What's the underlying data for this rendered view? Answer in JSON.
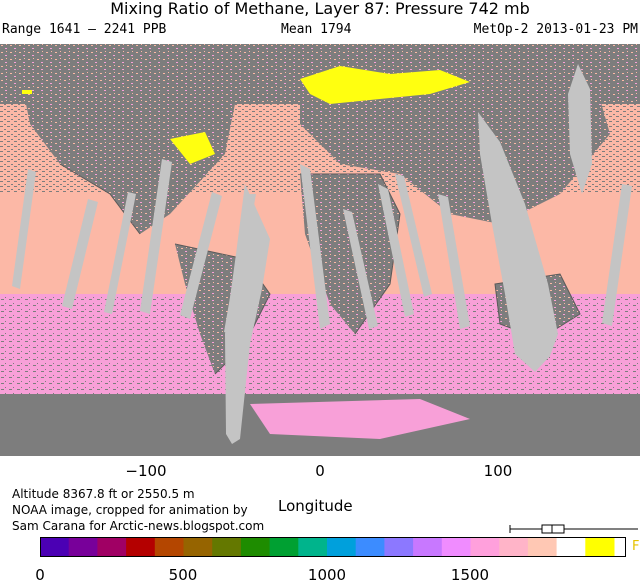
{
  "title": "Mixing Ratio of Methane, Layer 87: Pressure 742 mb",
  "subtitle": {
    "range": "Range 1641 – 2241 PPB",
    "mean": "Mean 1794",
    "source": "MetOp-2 2013-01-23 PM"
  },
  "map": {
    "colors": {
      "land_gray": "#7d7d7d",
      "orbit_gap": "#c4c4c4",
      "peach": "#fcb8a6",
      "pink": "#f8a0d8",
      "yellow": "#ffff10",
      "outline": "#5a5a5a"
    }
  },
  "x_axis": {
    "ticks": [
      "−100",
      "0",
      "100"
    ],
    "label": "Longitude"
  },
  "notes": {
    "altitude": "Altitude   8367.8 ft or 2550.5 m",
    "credit_1": "NOAA image, cropped for animation by",
    "credit_2": "Sam Carana for Arctic-news.blogspot.com"
  },
  "colorbar": {
    "ticks": [
      "0",
      "500",
      "1000",
      "1500"
    ],
    "end_mark": "F",
    "colors": [
      "#4b00b4",
      "#78009a",
      "#a00064",
      "#b40000",
      "#b44600",
      "#966400",
      "#647800",
      "#1e8c00",
      "#00a032",
      "#00b48c",
      "#00a0dc",
      "#3c8cff",
      "#8c78ff",
      "#c878ff",
      "#f08cff",
      "#ffa0dc",
      "#ffb4c8",
      "#ffc8b4",
      "#ffffff",
      "#ffff00"
    ]
  }
}
